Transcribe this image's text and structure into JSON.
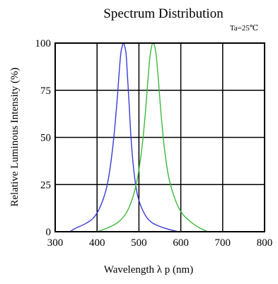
{
  "chart_data": {
    "type": "line",
    "title": "Spectrum Distribution",
    "annotation": "Ta=25℃",
    "xlabel": "Wavelength  λ p (nm)",
    "ylabel": "Relative Luminous Intensity (%)",
    "xlim": [
      300,
      800
    ],
    "ylim": [
      0,
      100
    ],
    "x_ticks": [
      300,
      400,
      500,
      600,
      700,
      800
    ],
    "y_ticks": [
      0,
      25,
      50,
      75,
      100
    ],
    "grid": true,
    "legend": "none",
    "series": [
      {
        "color": "#3a3ad8",
        "points": [
          [
            335,
            0
          ],
          [
            350,
            2
          ],
          [
            370,
            4
          ],
          [
            390,
            7
          ],
          [
            405,
            12
          ],
          [
            420,
            21
          ],
          [
            430,
            32
          ],
          [
            440,
            50
          ],
          [
            448,
            70
          ],
          [
            453,
            85
          ],
          [
            457,
            95
          ],
          [
            461,
            99
          ],
          [
            463,
            100
          ],
          [
            465,
            99
          ],
          [
            469,
            95
          ],
          [
            472,
            85
          ],
          [
            476,
            70
          ],
          [
            481,
            50
          ],
          [
            488,
            32
          ],
          [
            497,
            19
          ],
          [
            512,
            10
          ],
          [
            530,
            5
          ],
          [
            560,
            2
          ],
          [
            595,
            0
          ]
        ]
      },
      {
        "color": "#3cb83c",
        "points": [
          [
            400,
            0
          ],
          [
            425,
            2
          ],
          [
            450,
            5
          ],
          [
            470,
            10
          ],
          [
            485,
            18
          ],
          [
            497,
            29
          ],
          [
            507,
            44
          ],
          [
            515,
            62
          ],
          [
            521,
            79
          ],
          [
            526,
            92
          ],
          [
            530,
            98
          ],
          [
            534,
            100
          ],
          [
            538,
            98
          ],
          [
            542,
            92
          ],
          [
            547,
            79
          ],
          [
            553,
            62
          ],
          [
            561,
            44
          ],
          [
            571,
            29
          ],
          [
            585,
            18
          ],
          [
            602,
            10
          ],
          [
            625,
            5
          ],
          [
            645,
            2
          ],
          [
            665,
            0
          ]
        ]
      }
    ]
  }
}
